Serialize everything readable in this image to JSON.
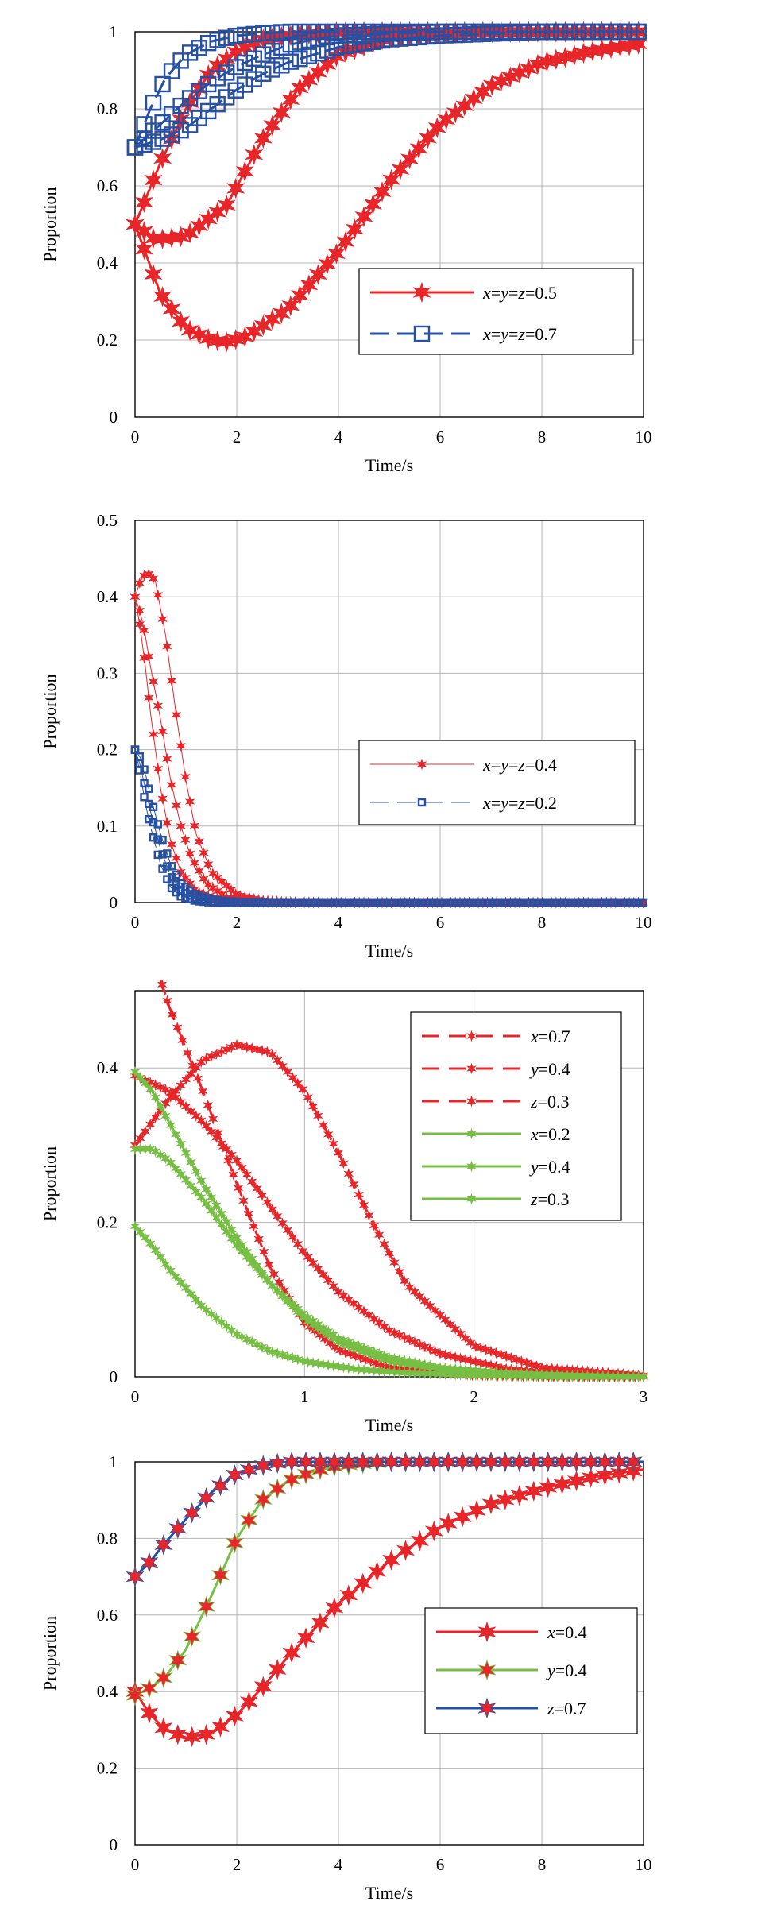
{
  "chart_data": [
    {
      "type": "line",
      "xlabel": "Time/s",
      "ylabel": "Proportion",
      "xlim": [
        0,
        10
      ],
      "ylim": [
        0,
        1
      ],
      "xticks": [
        "0",
        "2",
        "4",
        "6",
        "8",
        "10"
      ],
      "yticks": [
        "0",
        "0.2",
        "0.4",
        "0.6",
        "0.8",
        "1"
      ],
      "grid": true,
      "legend_position": "center-right",
      "legend": [
        {
          "label": "x=y=z=0.5",
          "color": "#e8262a",
          "marker": "star",
          "dash": "solid"
        },
        {
          "label": "x=y=z=0.7",
          "color": "#2650a3",
          "marker": "square",
          "dash": "dashed"
        }
      ],
      "series": [
        {
          "group": 0,
          "color": "#e8262a",
          "x": [
            0,
            0.4,
            1,
            1.8,
            2.5,
            3.2,
            4,
            5,
            6,
            7,
            8,
            9,
            10
          ],
          "y": [
            0.5,
            0.46,
            0.47,
            0.55,
            0.72,
            0.85,
            0.94,
            0.985,
            0.995,
            0.998,
            0.999,
            1,
            1
          ]
        },
        {
          "group": 0,
          "color": "#e8262a",
          "x": [
            0,
            0.5,
            1,
            1.5,
            2,
            2.5,
            3,
            4,
            5,
            6,
            7,
            8,
            9,
            10
          ],
          "y": [
            0.5,
            0.66,
            0.8,
            0.9,
            0.95,
            0.98,
            0.99,
            1,
            1,
            1,
            1,
            1,
            1,
            1
          ]
        },
        {
          "group": 0,
          "color": "#e8262a",
          "x": [
            0,
            0.5,
            1,
            1.5,
            1.8,
            2.2,
            3,
            4,
            5,
            6,
            7,
            8,
            9,
            10
          ],
          "y": [
            0.5,
            0.32,
            0.23,
            0.2,
            0.195,
            0.21,
            0.28,
            0.43,
            0.61,
            0.76,
            0.86,
            0.92,
            0.95,
            0.97
          ]
        },
        {
          "group": 1,
          "color": "#2650a3",
          "x": [
            0,
            0.3,
            0.6,
            1,
            1.5,
            2,
            2.5,
            3,
            4,
            5,
            6,
            7,
            8,
            9,
            10
          ],
          "y": [
            0.7,
            0.8,
            0.88,
            0.94,
            0.975,
            0.99,
            0.996,
            1,
            1,
            1,
            1,
            1,
            1,
            1,
            1
          ]
        },
        {
          "group": 1,
          "color": "#2650a3",
          "x": [
            0,
            0.5,
            1,
            1.5,
            2,
            2.5,
            3,
            3.5,
            4,
            5,
            6,
            7,
            8,
            9,
            10
          ],
          "y": [
            0.7,
            0.76,
            0.82,
            0.87,
            0.91,
            0.94,
            0.965,
            0.98,
            0.99,
            0.995,
            1,
            1,
            1,
            1,
            1
          ]
        },
        {
          "group": 1,
          "color": "#2650a3",
          "x": [
            0,
            0.5,
            1,
            1.5,
            2,
            2.5,
            3,
            4,
            5,
            6,
            7,
            8,
            9,
            10
          ],
          "y": [
            0.7,
            0.72,
            0.75,
            0.8,
            0.85,
            0.89,
            0.92,
            0.96,
            0.98,
            0.99,
            0.995,
            1,
            1,
            1
          ]
        }
      ]
    },
    {
      "type": "line",
      "xlabel": "Time/s",
      "ylabel": "Proportion",
      "xlim": [
        0,
        10
      ],
      "ylim": [
        0,
        0.5
      ],
      "xticks": [
        "0",
        "2",
        "4",
        "6",
        "8",
        "10"
      ],
      "yticks": [
        "0",
        "0.1",
        "0.2",
        "0.3",
        "0.4",
        "0.5"
      ],
      "grid": true,
      "legend_position": "center-right",
      "legend": [
        {
          "label": "x=y=z=0.4",
          "color": "#e8262a",
          "marker": "star",
          "dash": "solid"
        },
        {
          "label": "x=y=z=0.2",
          "color": "#2650a3",
          "marker": "square",
          "dash": "dashed"
        }
      ],
      "series": [
        {
          "group": 0,
          "color": "#e8262a",
          "x": [
            0,
            0.1,
            0.2,
            0.3,
            0.4,
            0.6,
            0.8,
            1,
            1.2,
            1.5,
            2,
            2.5,
            3,
            4,
            6,
            8,
            10
          ],
          "y": [
            0.4,
            0.42,
            0.43,
            0.43,
            0.42,
            0.35,
            0.25,
            0.16,
            0.09,
            0.04,
            0.01,
            0.003,
            0.001,
            0,
            0,
            0,
            0
          ]
        },
        {
          "group": 0,
          "color": "#e8262a",
          "x": [
            0,
            0.1,
            0.2,
            0.3,
            0.5,
            0.7,
            0.9,
            1.1,
            1.4,
            1.8,
            2.5,
            3,
            4,
            6,
            8,
            10
          ],
          "y": [
            0.4,
            0.38,
            0.35,
            0.31,
            0.24,
            0.16,
            0.1,
            0.06,
            0.025,
            0.007,
            0.001,
            0,
            0,
            0,
            0,
            0
          ]
        },
        {
          "group": 0,
          "color": "#e8262a",
          "x": [
            0,
            0.1,
            0.2,
            0.3,
            0.5,
            0.7,
            0.9,
            1.2,
            1.6,
            2,
            3,
            4,
            6,
            8,
            10
          ],
          "y": [
            0.4,
            0.36,
            0.31,
            0.25,
            0.15,
            0.08,
            0.04,
            0.015,
            0.004,
            0.001,
            0,
            0,
            0,
            0,
            0
          ]
        },
        {
          "group": 1,
          "color": "#2650a3",
          "x": [
            0,
            0.1,
            0.2,
            0.3,
            0.5,
            0.7,
            0.9,
            1.2,
            1.6,
            2,
            3,
            4,
            6,
            8,
            10
          ],
          "y": [
            0.2,
            0.19,
            0.17,
            0.14,
            0.09,
            0.05,
            0.025,
            0.01,
            0.003,
            0.001,
            0,
            0,
            0,
            0,
            0
          ]
        },
        {
          "group": 1,
          "color": "#2650a3",
          "x": [
            0,
            0.1,
            0.2,
            0.3,
            0.5,
            0.7,
            0.9,
            1.2,
            1.5,
            2,
            3,
            4,
            6,
            8,
            10
          ],
          "y": [
            0.2,
            0.18,
            0.15,
            0.12,
            0.07,
            0.035,
            0.015,
            0.005,
            0.001,
            0,
            0,
            0,
            0,
            0,
            0
          ]
        },
        {
          "group": 1,
          "color": "#2650a3",
          "x": [
            0,
            0.1,
            0.2,
            0.3,
            0.5,
            0.7,
            0.9,
            1.2,
            1.5,
            2,
            3,
            4,
            6,
            8,
            10
          ],
          "y": [
            0.2,
            0.17,
            0.13,
            0.1,
            0.05,
            0.02,
            0.008,
            0.002,
            0,
            0,
            0,
            0,
            0,
            0,
            0
          ]
        }
      ]
    },
    {
      "type": "line",
      "xlabel": "Time/s",
      "ylabel": "Proportion",
      "xlim": [
        0,
        3
      ],
      "ylim": [
        0,
        0.5
      ],
      "xticks": [
        "0",
        "1",
        "2",
        "3"
      ],
      "yticks": [
        "0",
        "0.2",
        "0.4"
      ],
      "ytick_values": [
        0,
        0.2,
        0.4
      ],
      "grid": true,
      "legend_position": "top-right",
      "legend": [
        {
          "prefix": "x",
          "suffix": "=0.7",
          "color": "#e8262a",
          "marker": "star",
          "dash": "dashed"
        },
        {
          "prefix": "y",
          "suffix": "=0.4",
          "color": "#e8262a",
          "marker": "star",
          "dash": "dashed"
        },
        {
          "prefix": "z",
          "suffix": "=0.3",
          "color": "#e8262a",
          "marker": "star",
          "dash": "dashed"
        },
        {
          "prefix": "x",
          "suffix": "=0.2",
          "color": "#77bf44",
          "marker": "star",
          "dash": "solid"
        },
        {
          "prefix": "y",
          "suffix": "=0.4",
          "color": "#77bf44",
          "marker": "star",
          "dash": "solid"
        },
        {
          "prefix": "z",
          "suffix": "=0.3",
          "color": "#77bf44",
          "marker": "star",
          "dash": "solid"
        }
      ],
      "series": [
        {
          "group": 0,
          "dash": "dashed",
          "color": "#e8262a",
          "x": [
            0.1,
            0.2,
            0.4,
            0.6,
            0.8,
            1,
            1.2,
            1.5,
            2,
            2.5,
            3
          ],
          "y": [
            0.55,
            0.48,
            0.37,
            0.25,
            0.14,
            0.07,
            0.035,
            0.012,
            0.002,
            0,
            0
          ]
        },
        {
          "group": 0,
          "dash": "dashed",
          "color": "#e8262a",
          "x": [
            0,
            0.2,
            0.4,
            0.6,
            0.8,
            1,
            1.2,
            1.5,
            1.8,
            2.2,
            2.6,
            3
          ],
          "y": [
            0.39,
            0.37,
            0.33,
            0.28,
            0.22,
            0.16,
            0.11,
            0.06,
            0.03,
            0.01,
            0.003,
            0
          ]
        },
        {
          "group": 0,
          "dash": "dashed",
          "color": "#e8262a",
          "x": [
            0,
            0.2,
            0.4,
            0.6,
            0.8,
            1,
            1.2,
            1.4,
            1.6,
            2,
            2.4,
            3
          ],
          "y": [
            0.3,
            0.36,
            0.41,
            0.43,
            0.42,
            0.37,
            0.29,
            0.2,
            0.12,
            0.04,
            0.012,
            0.002
          ]
        },
        {
          "group": 1,
          "dash": "solid",
          "color": "#77bf44",
          "x": [
            0,
            0.1,
            0.2,
            0.4,
            0.6,
            0.8,
            1,
            1.3,
            1.6,
            2,
            2.5,
            3
          ],
          "y": [
            0.195,
            0.17,
            0.14,
            0.09,
            0.055,
            0.033,
            0.02,
            0.01,
            0.005,
            0.002,
            0,
            0
          ]
        },
        {
          "group": 1,
          "dash": "solid",
          "color": "#77bf44",
          "x": [
            0,
            0.1,
            0.2,
            0.4,
            0.6,
            0.8,
            1,
            1.2,
            1.5,
            1.8,
            2.2,
            2.6,
            3
          ],
          "y": [
            0.395,
            0.37,
            0.33,
            0.25,
            0.18,
            0.12,
            0.075,
            0.045,
            0.02,
            0.01,
            0.004,
            0.001,
            0
          ]
        },
        {
          "group": 1,
          "dash": "solid",
          "color": "#77bf44",
          "x": [
            0,
            0.1,
            0.2,
            0.4,
            0.6,
            0.8,
            1,
            1.2,
            1.5,
            1.8,
            2.2,
            2.6,
            3
          ],
          "y": [
            0.295,
            0.295,
            0.28,
            0.23,
            0.17,
            0.12,
            0.08,
            0.05,
            0.025,
            0.012,
            0.005,
            0.002,
            0
          ]
        }
      ]
    },
    {
      "type": "line",
      "xlabel": "Time/s",
      "ylabel": "Proportion",
      "xlim": [
        0,
        10
      ],
      "ylim": [
        0,
        1
      ],
      "xticks": [
        "0",
        "2",
        "4",
        "6",
        "8",
        "10"
      ],
      "yticks": [
        "0",
        "0.2",
        "0.4",
        "0.6",
        "0.8",
        "1"
      ],
      "grid": true,
      "legend_position": "center-right",
      "legend": [
        {
          "prefix": "x",
          "suffix": "=0.4",
          "color": "#e8262a",
          "marker": "star",
          "dash": "solid"
        },
        {
          "prefix": "y",
          "suffix": "=0.4",
          "color": "#77bf44",
          "marker": "star",
          "dash": "solid",
          "marker_fill": "#e8262a"
        },
        {
          "prefix": "z",
          "suffix": "=0.7",
          "color": "#2650a3",
          "marker": "star",
          "dash": "solid",
          "marker_fill": "#e8262a"
        }
      ],
      "series": [
        {
          "group": 0,
          "color": "#e8262a",
          "x": [
            0,
            0.3,
            0.6,
            1,
            1.5,
            2,
            2.5,
            3,
            4,
            5,
            6,
            7,
            8,
            9,
            10
          ],
          "y": [
            0.4,
            0.34,
            0.3,
            0.28,
            0.29,
            0.34,
            0.41,
            0.49,
            0.63,
            0.74,
            0.83,
            0.89,
            0.93,
            0.96,
            0.98
          ]
        },
        {
          "group": 1,
          "color": "#77bf44",
          "x": [
            0,
            0.3,
            0.6,
            1,
            1.5,
            2,
            2.5,
            3,
            3.5,
            4,
            5,
            6,
            7,
            8,
            9,
            10
          ],
          "y": [
            0.39,
            0.41,
            0.44,
            0.51,
            0.65,
            0.8,
            0.9,
            0.95,
            0.975,
            0.99,
            1,
            1,
            1,
            1,
            1,
            1
          ]
        },
        {
          "group": 2,
          "color": "#2650a3",
          "x": [
            0,
            0.3,
            0.6,
            1,
            1.5,
            2,
            2.5,
            3,
            4,
            5,
            6,
            7,
            8,
            9,
            10
          ],
          "y": [
            0.7,
            0.74,
            0.79,
            0.85,
            0.92,
            0.97,
            0.99,
            1,
            1,
            1,
            1,
            1,
            1,
            1,
            1
          ]
        }
      ]
    }
  ]
}
